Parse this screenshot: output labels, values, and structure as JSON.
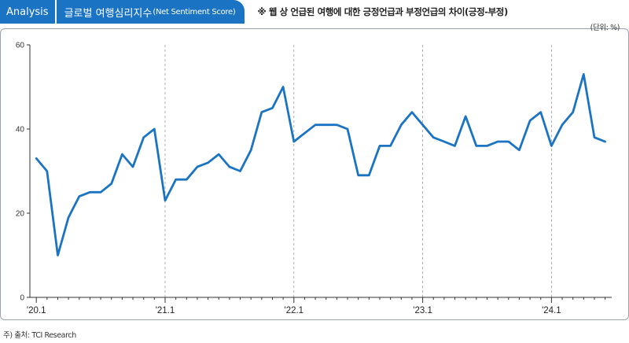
{
  "header": {
    "tag": "Analysis",
    "title": "글로벌 여행심리지수",
    "title_sub": "(Net Sentiment Score)",
    "note": "※ 웹 상 언급된 여행에 대한 긍정언급과 부정언급의 차이(긍정-부정)"
  },
  "unit": "(단위: %)",
  "source": "주) 출처: TCI Research",
  "colors": {
    "line": "#1a73c3",
    "tag_bg": "#1a73c3",
    "axis": "#333333",
    "grid": "#999999"
  },
  "chart_data": {
    "type": "line",
    "title": "",
    "xlabel": "",
    "ylabel": "",
    "ylim": [
      0,
      60
    ],
    "yticks": [
      0,
      20,
      40,
      60
    ],
    "xticks": [
      "'20.1",
      "'21.1",
      "'22.1",
      "'23.1",
      "'24.1"
    ],
    "xtick_positions": [
      1,
      13,
      25,
      37,
      49
    ],
    "grid": "vertical dashed at year starts",
    "series": [
      {
        "values": [
          33,
          30,
          10,
          19,
          24,
          25,
          25,
          27,
          34,
          31,
          38,
          40,
          23,
          28,
          28,
          31,
          32,
          34,
          31,
          30,
          35,
          44,
          45,
          50,
          37,
          39,
          41,
          41,
          41,
          40,
          29,
          29,
          36,
          36,
          41,
          44,
          41,
          38,
          37,
          36,
          43,
          36,
          36,
          37,
          37,
          35,
          42,
          44,
          36,
          41,
          44,
          53,
          38,
          37
        ]
      }
    ]
  }
}
